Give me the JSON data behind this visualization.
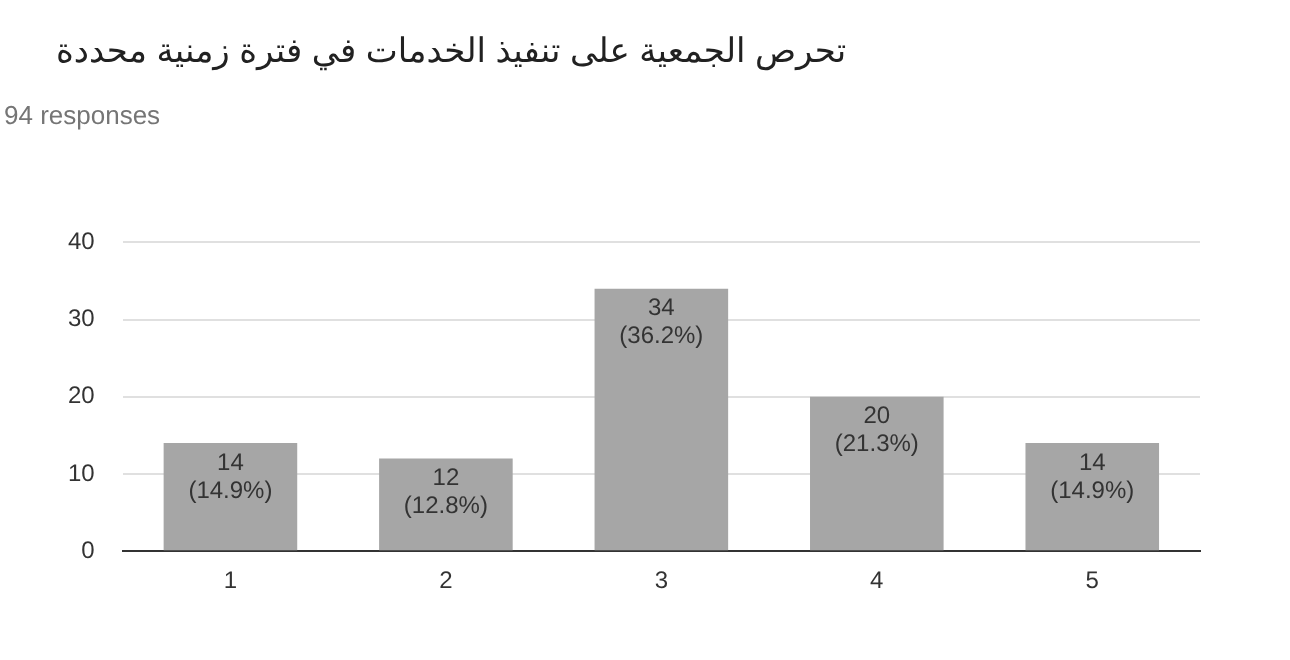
{
  "chart_data": {
    "type": "bar",
    "title": "تحرص الجمعية على تنفيذ الخدمات في فترة زمنية محددة",
    "subtitle": "94 responses",
    "categories": [
      "1",
      "2",
      "3",
      "4",
      "5"
    ],
    "values": [
      14,
      12,
      34,
      20,
      14
    ],
    "value_labels": [
      "14 (14.9%)",
      "12 (12.8%)",
      "34 (36.2%)",
      "20 (21.3%)",
      "14 (14.9%)"
    ],
    "color": "#a6a6a6",
    "ylim": [
      0,
      40
    ],
    "yticks": [
      0,
      10,
      20,
      30,
      40
    ],
    "grid": "y",
    "legend": false
  }
}
